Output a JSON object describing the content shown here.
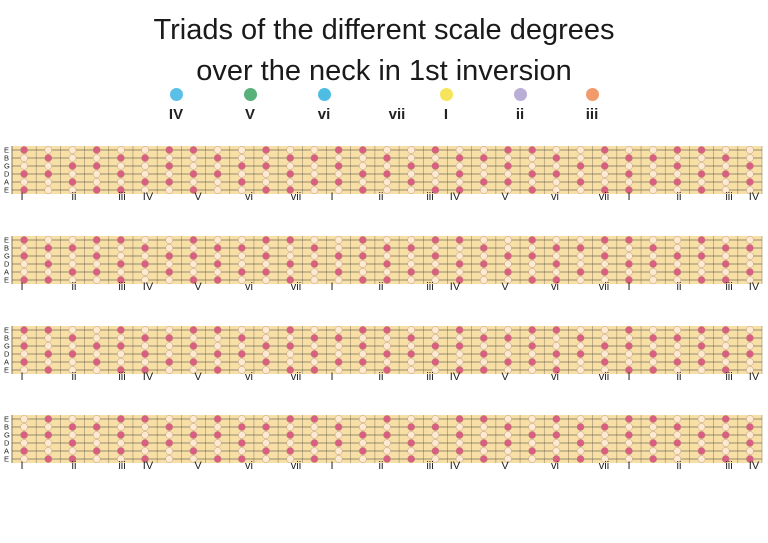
{
  "title": {
    "line1": "Triads of the different scale degrees",
    "line2": "over the neck in 1st inversion"
  },
  "legend": [
    {
      "label": "IV",
      "color": "#5bc0e8"
    },
    {
      "label": "V",
      "color": "#58b07a"
    },
    {
      "label": "vi",
      "color": "#4fbde3"
    },
    {
      "label": "vii",
      "color": ""
    },
    {
      "label": "I",
      "color": "#f6e55a"
    },
    {
      "label": "ii",
      "color": "#b9aed6"
    },
    {
      "label": "iii",
      "color": "#f19a6b"
    }
  ],
  "strings": [
    "E",
    "B",
    "G",
    "D",
    "A",
    "E"
  ],
  "fret_degree_labels": [
    "I",
    "ii",
    "iii",
    "IV",
    "V",
    "vi",
    "vii",
    "I",
    "ii",
    "iii",
    "IV",
    "V",
    "vi",
    "vii",
    "I",
    "ii",
    "iii",
    "IV"
  ],
  "necks": 4,
  "colors": {
    "fretboard": "#f8dfa6",
    "root_note": "#d95f80",
    "scale_note": "#fde9cf",
    "fret_line": "#9b8a6a"
  }
}
